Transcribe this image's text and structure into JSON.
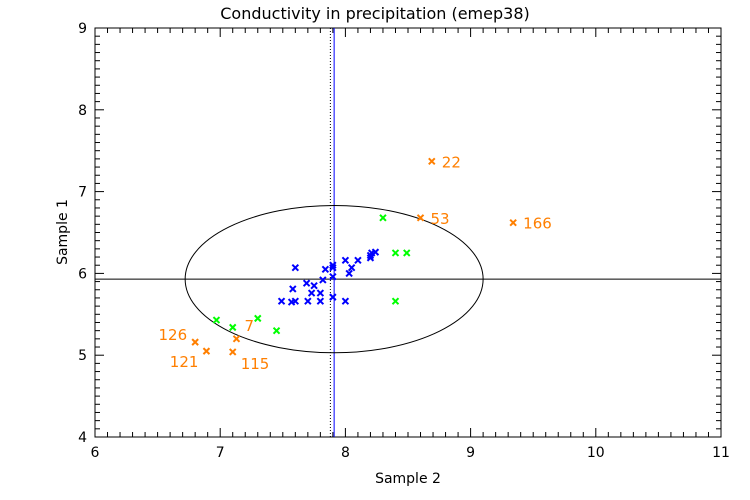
{
  "chart_data": {
    "type": "scatter",
    "title": "Conductivity in precipitation (emep38)",
    "xlabel": "Sample 2",
    "ylabel": "Sample 1",
    "xlim": [
      6,
      11
    ],
    "ylim": [
      4,
      9
    ],
    "xticks": [
      "6",
      "7",
      "8",
      "9",
      "10",
      "11"
    ],
    "yticks": [
      "4",
      "5",
      "6",
      "7",
      "8",
      "9"
    ],
    "grid": false,
    "colors": {
      "blue": "#0000ff",
      "green": "#00ff00",
      "orange": "#ff7f00",
      "axis": "#000000"
    },
    "series": [
      {
        "color": "blue",
        "points": [
          [
            7.6,
            6.07
          ],
          [
            7.49,
            5.66
          ],
          [
            7.57,
            5.65
          ],
          [
            7.6,
            5.66
          ],
          [
            7.7,
            5.66
          ],
          [
            7.8,
            5.66
          ],
          [
            7.9,
            5.71
          ],
          [
            8.0,
            5.66
          ],
          [
            7.58,
            5.81
          ],
          [
            7.69,
            5.88
          ],
          [
            7.75,
            5.85
          ],
          [
            7.73,
            5.76
          ],
          [
            7.8,
            5.76
          ],
          [
            7.82,
            5.92
          ],
          [
            7.84,
            6.05
          ],
          [
            7.9,
            6.07
          ],
          [
            7.9,
            5.96
          ],
          [
            7.9,
            6.1
          ],
          [
            8.0,
            6.16
          ],
          [
            8.1,
            6.16
          ],
          [
            8.03,
            6.0
          ],
          [
            8.05,
            6.07
          ],
          [
            8.2,
            6.19
          ],
          [
            8.21,
            6.25
          ],
          [
            8.24,
            6.26
          ],
          [
            8.2,
            6.22
          ]
        ]
      },
      {
        "color": "green",
        "points": [
          [
            6.97,
            5.43
          ],
          [
            7.1,
            5.34
          ],
          [
            7.3,
            5.45
          ],
          [
            7.45,
            5.3
          ],
          [
            8.3,
            6.68
          ],
          [
            8.4,
            6.25
          ],
          [
            8.49,
            6.25
          ],
          [
            8.4,
            5.66
          ]
        ]
      },
      {
        "color": "orange",
        "points": [
          [
            6.8,
            5.16,
            "126"
          ],
          [
            6.89,
            5.05,
            "121"
          ],
          [
            7.13,
            5.2,
            "7"
          ],
          [
            7.1,
            5.04,
            "115"
          ],
          [
            8.69,
            7.37,
            "22"
          ],
          [
            8.6,
            6.68,
            "53"
          ],
          [
            9.34,
            6.62,
            "166"
          ]
        ]
      }
    ],
    "reference_lines": {
      "horizontal_y": 5.93,
      "vertical_x": 7.91,
      "vertical_dotted_x": 7.88
    },
    "ellipse": {
      "cx": 7.91,
      "cy": 5.93,
      "rx": 1.19,
      "ry": 0.9
    }
  }
}
